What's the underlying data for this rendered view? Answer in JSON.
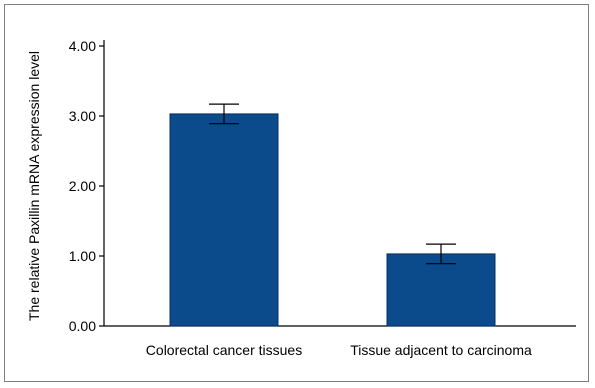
{
  "chart_data": {
    "type": "bar",
    "title": "",
    "xlabel": "",
    "ylabel": "The relative Paxillin mRNA expression level",
    "categories": [
      "Colorectal cancer tissues",
      "Tissue adjacent to carcinoma"
    ],
    "values": [
      3.03,
      1.03
    ],
    "error": [
      0.14,
      0.14
    ],
    "ylim": [
      0,
      4.0
    ],
    "yticks": [
      "0.00",
      "1.00",
      "2.00",
      "3.00",
      "4.00"
    ],
    "grid": false,
    "legend": "none",
    "bar_color": "#0b4a8b",
    "bar_border_color": "#0a2f5c"
  }
}
